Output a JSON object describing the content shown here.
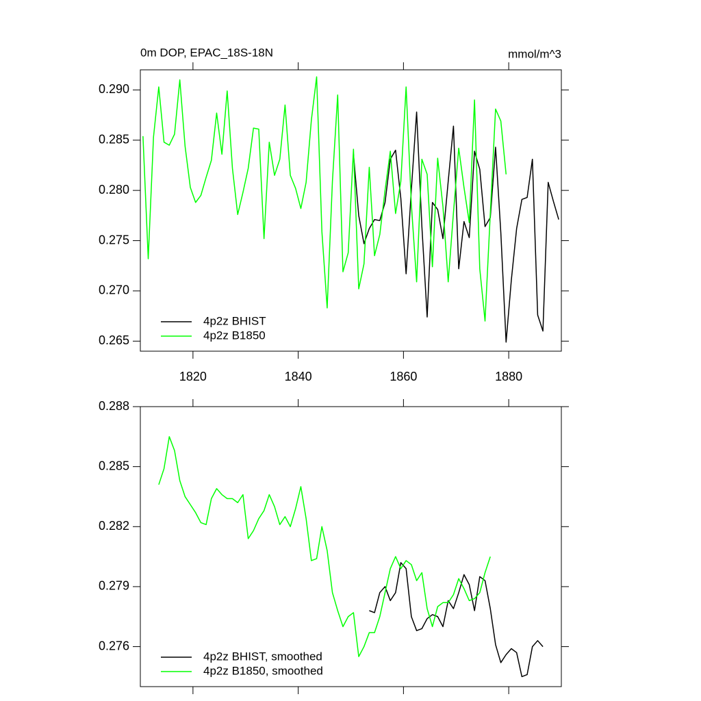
{
  "chart_data": [
    {
      "type": "line",
      "title": "0m DOP, EPAC_18S-18N",
      "units": "mmol/m^3",
      "xlim": [
        1810,
        1890
      ],
      "xticks": [
        1820,
        1840,
        1860,
        1880
      ],
      "ylim": [
        0.264,
        0.292
      ],
      "yticks": [
        0.265,
        {
          "value": 0.27,
          "label": "0.270"
        },
        0.275,
        {
          "value": 0.28,
          "label": "0.280"
        },
        0.285,
        {
          "value": 0.29,
          "label": "0.290"
        }
      ],
      "legend": "lower left",
      "series": [
        {
          "name": "4p2z BHIST",
          "color": "#000000",
          "x": [
            1850.5,
            1851.5,
            1852.5,
            1853.5,
            1854.5,
            1855.5,
            1856.5,
            1857.5,
            1858.5,
            1859.5,
            1860.5,
            1861.5,
            1862.5,
            1863.5,
            1864.5,
            1865.5,
            1866.5,
            1867.5,
            1868.5,
            1869.5,
            1870.5,
            1871.5,
            1872.5,
            1873.5,
            1874.5,
            1875.5,
            1876.5,
            1877.5,
            1878.5,
            1879.5,
            1880.5,
            1881.5,
            1882.5,
            1883.5,
            1884.5,
            1885.5,
            1886.5,
            1887.5,
            1888.5,
            1889.5
          ],
          "values": [
            0.2836,
            0.2775,
            0.2747,
            0.2762,
            0.2771,
            0.277,
            0.2788,
            0.2831,
            0.284,
            0.2792,
            0.2717,
            0.2801,
            0.2878,
            0.2764,
            0.2674,
            0.2788,
            0.2781,
            0.2752,
            0.2809,
            0.2864,
            0.2722,
            0.2769,
            0.2753,
            0.2839,
            0.2821,
            0.2764,
            0.2773,
            0.2843,
            0.2758,
            0.2649,
            0.2711,
            0.2762,
            0.2791,
            0.2793,
            0.2831,
            0.2676,
            0.266,
            0.2808,
            0.2789,
            0.2771
          ]
        },
        {
          "name": "4p2z B1850",
          "color": "#00ff00",
          "x": [
            1810.5,
            1811.5,
            1812.5,
            1813.5,
            1814.5,
            1815.5,
            1816.5,
            1817.5,
            1818.5,
            1819.5,
            1820.5,
            1821.5,
            1822.5,
            1823.5,
            1824.5,
            1825.5,
            1826.5,
            1827.5,
            1828.5,
            1829.5,
            1830.5,
            1831.5,
            1832.5,
            1833.5,
            1834.5,
            1835.5,
            1836.5,
            1837.5,
            1838.5,
            1839.5,
            1840.5,
            1841.5,
            1842.5,
            1843.5,
            1844.5,
            1845.5,
            1846.5,
            1847.5,
            1848.5,
            1849.5,
            1850.5,
            1851.5,
            1852.5,
            1853.5,
            1854.5,
            1855.5,
            1856.5,
            1857.5,
            1858.5,
            1859.5,
            1860.5,
            1861.5,
            1862.5,
            1863.5,
            1864.5,
            1865.5,
            1866.5,
            1867.5,
            1868.5,
            1869.5,
            1870.5,
            1871.5,
            1872.5,
            1873.5,
            1874.5,
            1875.5,
            1876.5,
            1877.5,
            1878.5,
            1879.5
          ],
          "values": [
            0.2854,
            0.2732,
            0.2853,
            0.2903,
            0.2848,
            0.2845,
            0.2856,
            0.291,
            0.2844,
            0.2803,
            0.2788,
            0.2795,
            0.2813,
            0.283,
            0.2877,
            0.2836,
            0.2899,
            0.2822,
            0.2776,
            0.2798,
            0.2822,
            0.2862,
            0.2861,
            0.2752,
            0.2848,
            0.2815,
            0.2831,
            0.2885,
            0.2815,
            0.2802,
            0.2782,
            0.2808,
            0.287,
            0.2913,
            0.2759,
            0.2683,
            0.2809,
            0.2895,
            0.2719,
            0.2738,
            0.2841,
            0.2702,
            0.2727,
            0.2823,
            0.2735,
            0.2756,
            0.28,
            0.2839,
            0.2777,
            0.2809,
            0.2903,
            0.2786,
            0.2709,
            0.2831,
            0.2816,
            0.2724,
            0.2832,
            0.2784,
            0.2709,
            0.2778,
            0.2842,
            0.2803,
            0.2768,
            0.289,
            0.2722,
            0.267,
            0.2777,
            0.2881,
            0.2869,
            0.2816
          ]
        }
      ]
    },
    {
      "type": "line",
      "xlim": [
        1810,
        1890
      ],
      "xticks": [
        1820,
        1840,
        1860,
        1880
      ],
      "xticklabels": false,
      "ylim": [
        0.274,
        0.288
      ],
      "yticks": [
        0.276,
        0.279,
        0.282,
        0.285,
        0.288
      ],
      "legend": "lower left",
      "series": [
        {
          "name": "4p2z BHIST, smoothed",
          "color": "#000000",
          "x": [
            1853.5,
            1854.5,
            1855.5,
            1856.5,
            1857.5,
            1858.5,
            1859.5,
            1860.5,
            1861.5,
            1862.5,
            1863.5,
            1864.5,
            1865.5,
            1866.5,
            1867.5,
            1868.5,
            1869.5,
            1870.5,
            1871.5,
            1872.5,
            1873.5,
            1874.5,
            1875.5,
            1876.5,
            1877.5,
            1878.5,
            1879.5,
            1880.5,
            1881.5,
            1882.5,
            1883.5,
            1884.5,
            1885.5,
            1886.5
          ],
          "values": [
            0.2778,
            0.2777,
            0.2787,
            0.279,
            0.2783,
            0.2787,
            0.2802,
            0.2799,
            0.2775,
            0.2768,
            0.2769,
            0.2774,
            0.2776,
            0.2775,
            0.277,
            0.2783,
            0.2779,
            0.2787,
            0.2796,
            0.2791,
            0.2778,
            0.2795,
            0.2793,
            0.2779,
            0.2761,
            0.2752,
            0.2756,
            0.2759,
            0.2757,
            0.2745,
            0.2746,
            0.276,
            0.2763,
            0.276
          ]
        },
        {
          "name": "4p2z B1850, smoothed",
          "color": "#00ff00",
          "x": [
            1813.5,
            1814.5,
            1815.5,
            1816.5,
            1817.5,
            1818.5,
            1819.5,
            1820.5,
            1821.5,
            1822.5,
            1823.5,
            1824.5,
            1825.5,
            1826.5,
            1827.5,
            1828.5,
            1829.5,
            1830.5,
            1831.5,
            1832.5,
            1833.5,
            1834.5,
            1835.5,
            1836.5,
            1837.5,
            1838.5,
            1839.5,
            1840.5,
            1841.5,
            1842.5,
            1843.5,
            1844.5,
            1845.5,
            1846.5,
            1847.5,
            1848.5,
            1849.5,
            1850.5,
            1851.5,
            1852.5,
            1853.5,
            1854.5,
            1855.5,
            1856.5,
            1857.5,
            1858.5,
            1859.5,
            1860.5,
            1861.5,
            1862.5,
            1863.5,
            1864.5,
            1865.5,
            1866.5,
            1867.5,
            1868.5,
            1869.5,
            1870.5,
            1871.5,
            1872.5,
            1873.5,
            1874.5,
            1875.5,
            1876.5
          ],
          "values": [
            0.2841,
            0.2849,
            0.2865,
            0.2858,
            0.2843,
            0.2835,
            0.2831,
            0.2827,
            0.2822,
            0.2821,
            0.2834,
            0.2839,
            0.2836,
            0.2834,
            0.2834,
            0.2832,
            0.2836,
            0.2814,
            0.2818,
            0.2824,
            0.2828,
            0.2836,
            0.283,
            0.2821,
            0.2825,
            0.282,
            0.2829,
            0.284,
            0.2824,
            0.2803,
            0.2804,
            0.282,
            0.2808,
            0.2787,
            0.2778,
            0.277,
            0.2775,
            0.2777,
            0.2755,
            0.276,
            0.2767,
            0.2767,
            0.2775,
            0.2787,
            0.2799,
            0.2805,
            0.2799,
            0.2803,
            0.2801,
            0.2793,
            0.2797,
            0.2779,
            0.277,
            0.278,
            0.2782,
            0.2782,
            0.2786,
            0.2794,
            0.2789,
            0.2783,
            0.2784,
            0.2787,
            0.2797,
            0.2805
          ]
        }
      ]
    }
  ]
}
